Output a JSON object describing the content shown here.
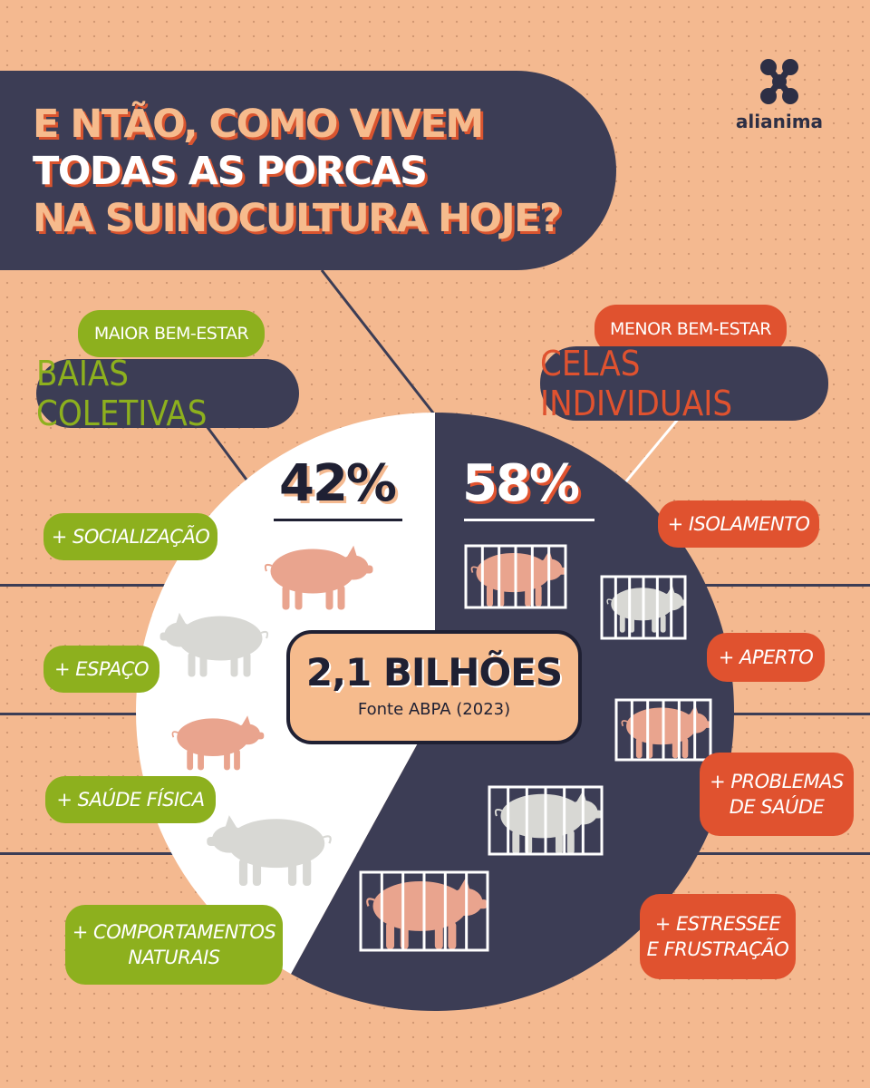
{
  "brand": {
    "name": "alianima"
  },
  "title": {
    "line1": "E NTÃO, COMO VIVEM",
    "line2": "TODAS AS PORCAS",
    "line3": "NA SUINOCULTURA HOJE?"
  },
  "left_category": {
    "tag": "MAIOR BEM-ESTAR",
    "label": "BAIAS COLETIVAS",
    "percent": "42%"
  },
  "right_category": {
    "tag": "MENOR BEM-ESTAR",
    "label": "CELAS INDIVIDUAIS",
    "percent": "58%"
  },
  "left_benefits": [
    {
      "line1": "+ SOCIALIZAÇÃO",
      "line2": ""
    },
    {
      "line1": "+ ESPAÇO",
      "line2": ""
    },
    {
      "line1": "+ SAÚDE FÍSICA",
      "line2": ""
    },
    {
      "line1": "+ COMPORTAMENTOS",
      "line2": "NATURAIS"
    }
  ],
  "right_problems": [
    {
      "line1": "+ ISOLAMENTO",
      "line2": ""
    },
    {
      "line1": "+ APERTO",
      "line2": ""
    },
    {
      "line1": "+ PROBLEMAS",
      "line2": "DE SAÚDE"
    },
    {
      "line1": "+ ESTRESSEE",
      "line2": "E FRUSTRAÇÃO"
    }
  ],
  "center": {
    "total": "2,1 BILHÕES",
    "source": "Fonte ABPA (2023)"
  },
  "colors": {
    "background": "#f4b990",
    "navy": "#3c3d55",
    "green": "#8db01e",
    "red": "#e0522f",
    "orange_text": "#f6bb8d",
    "white": "#ffffff"
  },
  "chart_data": {
    "type": "pie",
    "labels": [
      "BAIAS COLETIVAS",
      "CELAS INDIVIDUAIS"
    ],
    "values": [
      42,
      58
    ],
    "value_labels": [
      "42%",
      "58%"
    ],
    "total_label": "2,1 BILHÕES"
  }
}
